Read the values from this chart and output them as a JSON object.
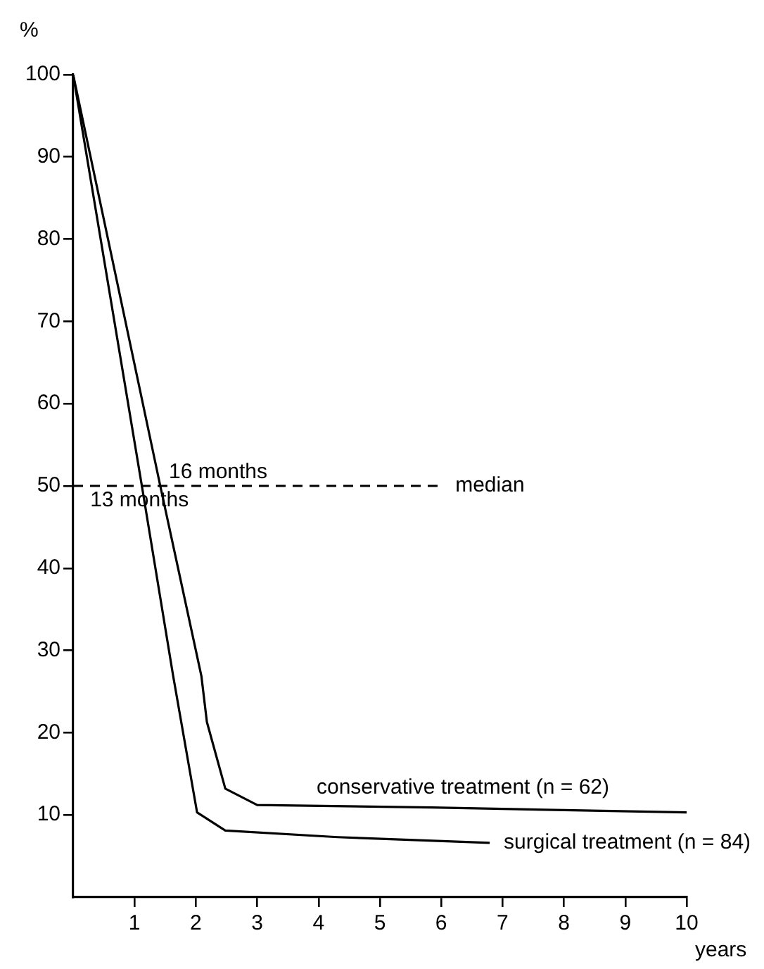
{
  "chart_data": {
    "type": "line",
    "ylabel": "%",
    "xlabel": "years",
    "xlim": [
      0,
      10
    ],
    "ylim": [
      0,
      100
    ],
    "xticks": [
      1,
      2,
      3,
      4,
      5,
      6,
      7,
      8,
      9,
      10
    ],
    "yticks": [
      10,
      20,
      30,
      40,
      50,
      60,
      70,
      80,
      90,
      100
    ],
    "grid": false,
    "legend": false,
    "marker": "none",
    "line_style": "solid",
    "series": [
      {
        "name": "conservative treatment (n = 62)",
        "color": "#000000",
        "x": [
          0,
          1.42,
          2.09,
          2.18,
          2.48,
          3.0,
          5.85,
          10
        ],
        "values": [
          100,
          50,
          26.9,
          21.3,
          13.2,
          11.2,
          10.9,
          10.3
        ]
      },
      {
        "name": "surgical treatment (n = 84)",
        "color": "#000000",
        "x": [
          0,
          1.12,
          1.63,
          2.02,
          2.48,
          4.31,
          6.79
        ],
        "values": [
          100,
          50,
          26.9,
          10.3,
          8.1,
          7.3,
          6.6
        ]
      },
      {
        "name": "median",
        "color": "#000000",
        "line_style": "dashed",
        "x": [
          0,
          6
        ],
        "values": [
          50,
          50
        ]
      }
    ],
    "annotations": [
      {
        "text": "16 months",
        "x": 1.33,
        "y": 50
      },
      {
        "text": "13 months",
        "x": 1.08,
        "y": 50
      }
    ]
  }
}
